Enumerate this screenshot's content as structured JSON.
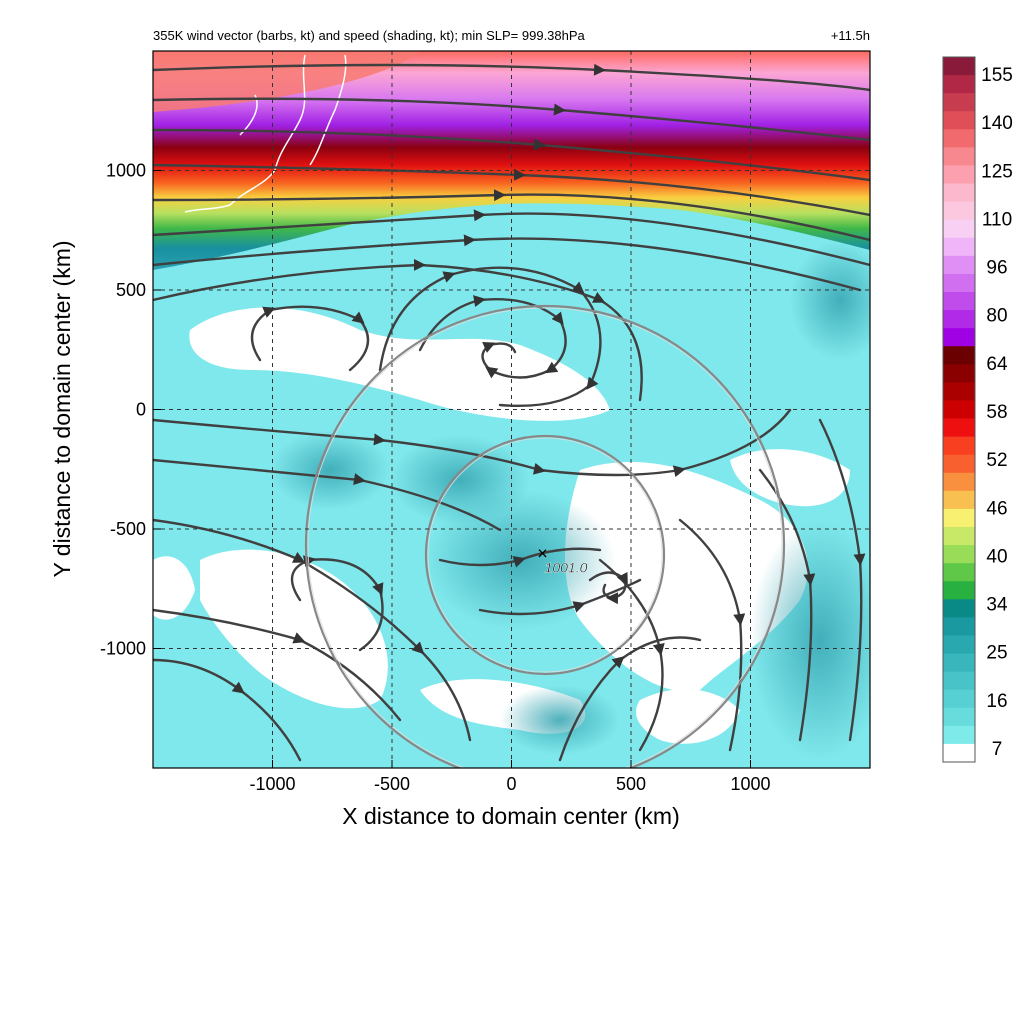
{
  "header": {
    "title": "355K wind vector (barbs, kt) and speed (shading, kt); min SLP= 999.38hPa",
    "time": "+11.5h"
  },
  "axes": {
    "xlabel": "X distance to domain center (km)",
    "ylabel": "Y distance to domain center (km)",
    "xlim": [
      -1500,
      1500
    ],
    "ylim": [
      -1500,
      1500
    ],
    "xticks": [
      {
        "value": -1000,
        "label": "-1000"
      },
      {
        "value": -500,
        "label": "-500"
      },
      {
        "value": 0,
        "label": "0"
      },
      {
        "value": 500,
        "label": "500"
      },
      {
        "value": 1000,
        "label": "1000"
      }
    ],
    "yticks": [
      {
        "value": 1000,
        "label": "1000"
      },
      {
        "value": 500,
        "label": "500"
      },
      {
        "value": 0,
        "label": "0"
      },
      {
        "value": -500,
        "label": "-500"
      },
      {
        "value": -1000,
        "label": "-1000"
      }
    ],
    "grid": "dashed"
  },
  "annotation": {
    "marker": "×",
    "label": "1001.0",
    "x": 130,
    "y": -610
  },
  "circles": [
    {
      "cx": 200,
      "cy": -610,
      "r_km": 480
    },
    {
      "cx": 210,
      "cy": -590,
      "r_km": 920
    }
  ],
  "colorbar": {
    "labels": [
      "155",
      "140",
      "125",
      "110",
      "96",
      "80",
      "64",
      "58",
      "52",
      "46",
      "40",
      "34",
      "25",
      "16",
      "7"
    ],
    "colors": [
      "#8a1a3a",
      "#b02845",
      "#c83c50",
      "#e04e58",
      "#f06a6e",
      "#f88890",
      "#fca0b0",
      "#fcb8cc",
      "#fcc8e0",
      "#f8d0f4",
      "#f0b4f8",
      "#e090f4",
      "#d070f0",
      "#c04cec",
      "#b02ae8",
      "#a000e4",
      "#6a0000",
      "#8a0000",
      "#aa0000",
      "#cc0000",
      "#ee1010",
      "#f84020",
      "#f86030",
      "#f89040",
      "#f8c050",
      "#f8f070",
      "#c8e868",
      "#98dc58",
      "#60c848",
      "#28b040",
      "#0a8a86",
      "#1a9aa0",
      "#2aa8b0",
      "#38b6bc",
      "#48c4c8",
      "#56d0d2",
      "#68dcdc",
      "#7eeaea",
      "#ffffff"
    ]
  },
  "palette": {
    "field_light": "#7fe8ec",
    "field_mid": "#50c8cc",
    "field_deep": "#2a9aa8",
    "purple": "#b030e8",
    "red": "#cc1010",
    "streamline": "#404040"
  }
}
